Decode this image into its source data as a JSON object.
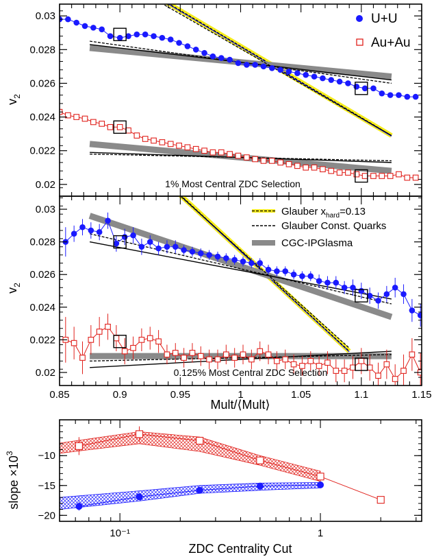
{
  "colors": {
    "uu": "#1a1aff",
    "auau": "#e0201b",
    "glauber_band": "#f5ec1e",
    "cgc": "#8a8a8a",
    "axis": "#000000"
  },
  "chart_data": [
    {
      "type": "line",
      "panel": "top",
      "annotation": "1% Most Central ZDC Selection",
      "ylabel": "v",
      "ylabel_sub": "2",
      "xlim": [
        0.85,
        1.15
      ],
      "ylim": [
        0.0193,
        0.0307
      ],
      "yticks": [
        0.02,
        0.022,
        0.024,
        0.026,
        0.028,
        0.03
      ],
      "ytick_labels": [
        "0.02",
        "0.022",
        "0.024",
        "0.026",
        "0.028",
        "0.03"
      ],
      "legend": {
        "placement": "top-right",
        "entries": [
          {
            "name": "U+U",
            "marker": "circle"
          },
          {
            "name": "Au+Au",
            "marker": "open-square"
          }
        ]
      },
      "series": [
        {
          "name": "U+U",
          "marker": "circle",
          "x": [
            0.85,
            0.857,
            0.864,
            0.871,
            0.878,
            0.885,
            0.892,
            0.9,
            0.907,
            0.914,
            0.921,
            0.928,
            0.935,
            0.942,
            0.949,
            0.956,
            0.963,
            0.97,
            0.977,
            0.984,
            0.991,
            0.998,
            1.005,
            1.012,
            1.019,
            1.026,
            1.033,
            1.04,
            1.047,
            1.054,
            1.061,
            1.068,
            1.075,
            1.082,
            1.089,
            1.096,
            1.103,
            1.11,
            1.117,
            1.124,
            1.131,
            1.138,
            1.145
          ],
          "y": [
            0.0298,
            0.0298,
            0.0296,
            0.0294,
            0.0293,
            0.0292,
            0.0288,
            0.0287,
            0.0288,
            0.0289,
            0.0289,
            0.0288,
            0.0287,
            0.0286,
            0.0284,
            0.0282,
            0.028,
            0.0278,
            0.0276,
            0.0275,
            0.0274,
            0.0272,
            0.0271,
            0.0271,
            0.027,
            0.0269,
            0.0268,
            0.0267,
            0.0266,
            0.0265,
            0.0264,
            0.0263,
            0.0262,
            0.0261,
            0.026,
            0.0258,
            0.0257,
            0.0257,
            0.0254,
            0.0253,
            0.0253,
            0.0252,
            0.0252
          ]
        },
        {
          "name": "Au+Au",
          "marker": "open-square",
          "x": [
            0.85,
            0.857,
            0.864,
            0.871,
            0.878,
            0.885,
            0.892,
            0.9,
            0.907,
            0.914,
            0.921,
            0.928,
            0.935,
            0.942,
            0.949,
            0.956,
            0.963,
            0.97,
            0.977,
            0.984,
            0.991,
            0.998,
            1.005,
            1.012,
            1.019,
            1.026,
            1.033,
            1.04,
            1.047,
            1.054,
            1.061,
            1.068,
            1.075,
            1.082,
            1.089,
            1.096,
            1.103,
            1.11,
            1.117,
            1.124,
            1.131,
            1.138,
            1.145
          ],
          "y": [
            0.0243,
            0.0241,
            0.024,
            0.0239,
            0.0237,
            0.0236,
            0.0234,
            0.0234,
            0.0232,
            0.0229,
            0.0227,
            0.0226,
            0.0225,
            0.0224,
            0.0223,
            0.0222,
            0.0221,
            0.022,
            0.0219,
            0.0219,
            0.0218,
            0.0217,
            0.0216,
            0.0215,
            0.0214,
            0.0214,
            0.0213,
            0.0212,
            0.0211,
            0.021,
            0.021,
            0.0209,
            0.0208,
            0.0207,
            0.0207,
            0.0206,
            0.0205,
            0.0205,
            0.0205,
            0.0205,
            0.0206,
            0.0204,
            0.0204
          ]
        }
      ],
      "syst_boxes": [
        {
          "series": "U+U",
          "x": 0.9,
          "y": 0.0289
        },
        {
          "series": "U+U",
          "x": 1.1,
          "y": 0.0257
        },
        {
          "series": "Au+Au",
          "x": 0.9,
          "y": 0.0234
        },
        {
          "series": "Au+Au",
          "x": 1.1,
          "y": 0.0205
        }
      ],
      "model_lines": [
        {
          "model": "Glauber x_hard=0.13",
          "style": "yellow-band",
          "x": [
            0.875,
            1.125
          ],
          "y": [
            0.0335,
            0.0229
          ]
        },
        {
          "model": "Glauber Const. Quarks",
          "style": "dashed",
          "x": [
            0.875,
            1.125
          ],
          "y": [
            0.0332,
            0.0229
          ]
        },
        {
          "model": "CGC-IPGlasma",
          "style": "gray-band",
          "x": [
            0.875,
            1.125
          ],
          "y": [
            0.0281,
            0.0264
          ]
        },
        {
          "model": "Glauber x_hard=0.13",
          "style": "solid",
          "x": [
            0.875,
            1.125
          ],
          "y": [
            0.0283,
            0.0262
          ]
        },
        {
          "model": "Glauber Const. Quarks",
          "style": "dashed",
          "x": [
            0.875,
            1.125
          ],
          "y": [
            0.0285,
            0.026
          ]
        },
        {
          "model": "CGC-IPGlasma",
          "style": "gray-band",
          "x": [
            0.875,
            1.125
          ],
          "y": [
            0.0224,
            0.0208
          ]
        },
        {
          "model": "Glauber x_hard=0.13",
          "style": "solid",
          "x": [
            0.875,
            1.125
          ],
          "y": [
            0.0219,
            0.0213
          ]
        },
        {
          "model": "Glauber Const. Quarks",
          "style": "dashed",
          "x": [
            0.875,
            1.125
          ],
          "y": [
            0.0218,
            0.0214
          ]
        }
      ]
    },
    {
      "type": "line",
      "panel": "middle",
      "annotation": "0.125% Most Central ZDC Selection",
      "ylabel": "v",
      "ylabel_sub": "2",
      "xlabel": "Mult/⟨Mult⟩",
      "xlim": [
        0.85,
        1.15
      ],
      "ylim": [
        0.0192,
        0.0308
      ],
      "xticks": [
        0.85,
        0.9,
        0.95,
        1,
        1.05,
        1.1,
        1.15
      ],
      "xtick_labels": [
        "0.85",
        "0.9",
        "0.95",
        "1",
        "1.05",
        "1.1",
        "1.15"
      ],
      "yticks": [
        0.02,
        0.022,
        0.024,
        0.026,
        0.028,
        0.03
      ],
      "ytick_labels": [
        "0.02",
        "0.022",
        "0.024",
        "0.026",
        "0.028",
        "0.03"
      ],
      "legend": {
        "placement": "top-right",
        "entries": [
          {
            "name": "Glauber x",
            "sub": "hard",
            "suffix": "=0.13",
            "style": "yellow-band"
          },
          {
            "name": "Glauber Const. Quarks",
            "style": "dashed"
          },
          {
            "name": "CGC-IPGlasma",
            "style": "gray-band"
          }
        ]
      },
      "series": [
        {
          "name": "U+U",
          "marker": "circle",
          "x": [
            0.855,
            0.862,
            0.869,
            0.876,
            0.883,
            0.89,
            0.897,
            0.904,
            0.911,
            0.918,
            0.925,
            0.932,
            0.939,
            0.946,
            0.953,
            0.96,
            0.967,
            0.974,
            0.981,
            0.988,
            0.995,
            1.002,
            1.009,
            1.016,
            1.023,
            1.03,
            1.037,
            1.044,
            1.051,
            1.058,
            1.065,
            1.072,
            1.079,
            1.086,
            1.093,
            1.1,
            1.107,
            1.114,
            1.121,
            1.128,
            1.135,
            1.142,
            1.149
          ],
          "y": [
            0.028,
            0.0285,
            0.0289,
            0.0287,
            0.0286,
            0.0293,
            0.0279,
            0.0283,
            0.0284,
            0.0277,
            0.028,
            0.0276,
            0.0277,
            0.0277,
            0.0275,
            0.0274,
            0.0273,
            0.0272,
            0.0271,
            0.027,
            0.0269,
            0.0268,
            0.0267,
            0.0267,
            0.0263,
            0.0262,
            0.0262,
            0.026,
            0.0259,
            0.0259,
            0.0256,
            0.0255,
            0.0255,
            0.0252,
            0.0252,
            0.025,
            0.0247,
            0.0244,
            0.0248,
            0.0252,
            0.0248,
            0.0238,
            0.0235
          ],
          "err": [
            0.0009,
            0.0005,
            0.0005,
            0.0005,
            0.0005,
            0.0005,
            0.0005,
            0.0005,
            0.0005,
            0.0005,
            0.0004,
            0.0004,
            0.0004,
            0.0004,
            0.0003,
            0.0003,
            0.0003,
            0.0003,
            0.0003,
            0.0003,
            0.0003,
            0.0003,
            0.0003,
            0.0003,
            0.0003,
            0.0003,
            0.0003,
            0.0003,
            0.0003,
            0.0003,
            0.0004,
            0.0004,
            0.0004,
            0.0004,
            0.0005,
            0.0005,
            0.0005,
            0.0005,
            0.0005,
            0.0006,
            0.0006,
            0.0007,
            0.0007
          ]
        },
        {
          "name": "Au+Au",
          "marker": "open-square",
          "x": [
            0.855,
            0.862,
            0.869,
            0.876,
            0.883,
            0.89,
            0.897,
            0.904,
            0.911,
            0.918,
            0.925,
            0.932,
            0.939,
            0.946,
            0.953,
            0.96,
            0.967,
            0.974,
            0.981,
            0.988,
            0.995,
            1.002,
            1.009,
            1.016,
            1.023,
            1.03,
            1.037,
            1.044,
            1.051,
            1.058,
            1.065,
            1.072,
            1.079,
            1.086,
            1.093,
            1.1,
            1.107,
            1.114,
            1.121,
            1.128,
            1.135,
            1.142,
            1.149
          ],
          "y": [
            0.022,
            0.0218,
            0.0209,
            0.022,
            0.0225,
            0.0228,
            0.0221,
            0.0213,
            0.0215,
            0.022,
            0.0221,
            0.0219,
            0.0211,
            0.0212,
            0.0209,
            0.0212,
            0.021,
            0.0208,
            0.0208,
            0.0211,
            0.0209,
            0.0211,
            0.0208,
            0.0213,
            0.0211,
            0.0207,
            0.0208,
            0.0205,
            0.0204,
            0.0207,
            0.0204,
            0.0206,
            0.0201,
            0.0201,
            0.0203,
            0.0207,
            0.0203,
            0.0198,
            0.0205,
            0.0196,
            0.0201,
            0.0211,
            0.02
          ],
          "err": [
            0.0014,
            0.001,
            0.001,
            0.0009,
            0.0009,
            0.0008,
            0.0008,
            0.0008,
            0.0007,
            0.0007,
            0.0007,
            0.0007,
            0.0006,
            0.0006,
            0.0006,
            0.0006,
            0.0006,
            0.0006,
            0.0006,
            0.0006,
            0.0006,
            0.0006,
            0.0006,
            0.0006,
            0.0006,
            0.0006,
            0.0006,
            0.0006,
            0.0006,
            0.0006,
            0.0006,
            0.0007,
            0.0007,
            0.0007,
            0.0007,
            0.0008,
            0.0008,
            0.0008,
            0.0009,
            0.0009,
            0.001,
            0.001,
            0.0012
          ]
        }
      ],
      "syst_boxes": [
        {
          "series": "U+U",
          "x": 0.9,
          "y": 0.028
        },
        {
          "series": "U+U",
          "x": 1.1,
          "y": 0.0247
        },
        {
          "series": "Au+Au",
          "x": 0.9,
          "y": 0.0219
        },
        {
          "series": "Au+Au",
          "x": 1.1,
          "y": 0.0205
        }
      ],
      "model_lines": [
        {
          "model": "Glauber x_hard=0.13",
          "style": "yellow-band",
          "x": [
            0.875,
            1.09
          ],
          "y": [
            0.036,
            0.0213
          ]
        },
        {
          "model": "Glauber Const. Quarks",
          "style": "dashed",
          "x": [
            0.875,
            1.09
          ],
          "y": [
            0.0358,
            0.0215
          ]
        },
        {
          "model": "CGC-IPGlasma",
          "style": "gray-band",
          "x": [
            0.875,
            1.125
          ],
          "y": [
            0.0296,
            0.0234
          ]
        },
        {
          "model": "Glauber x_hard=0.13",
          "style": "solid",
          "x": [
            0.875,
            1.125
          ],
          "y": [
            0.028,
            0.0245
          ]
        },
        {
          "model": "Glauber Const. Quarks",
          "style": "dashed",
          "x": [
            0.875,
            1.125
          ],
          "y": [
            0.0285,
            0.0242
          ]
        },
        {
          "model": "CGC-IPGlasma",
          "style": "gray-band",
          "x": [
            0.875,
            1.125
          ],
          "y": [
            0.021,
            0.021
          ]
        },
        {
          "model": "Glauber x_hard=0.13",
          "style": "solid",
          "x": [
            0.875,
            1.125
          ],
          "y": [
            0.0203,
            0.0213
          ]
        },
        {
          "model": "Glauber Const. Quarks",
          "style": "dashed",
          "x": [
            0.875,
            1.125
          ],
          "y": [
            0.0207,
            0.0211
          ]
        }
      ]
    },
    {
      "type": "line",
      "panel": "bottom",
      "xscale": "log",
      "xlabel": "ZDC Centrality Cut",
      "ylabel": "slope ×10",
      "ylabel_sup": "3",
      "xlim": [
        0.05,
        3.2
      ],
      "ylim": [
        -21,
        -4
      ],
      "xticks": [
        0.1,
        1
      ],
      "xtick_labels": [
        "10⁻¹",
        "1"
      ],
      "yticks": [
        -20,
        -15,
        -10
      ],
      "ytick_labels": [
        "−20",
        "−15",
        "−10"
      ],
      "series": [
        {
          "name": "Au+Au",
          "marker": "open-square",
          "x": [
            0.0625,
            0.125,
            0.25,
            0.5,
            1,
            2
          ],
          "y": [
            -8.4,
            -6.4,
            -7.5,
            -10.8,
            -13.5,
            -17.4
          ],
          "err": [
            1.5,
            1.3,
            0.6,
            0.3,
            0.3,
            0.2
          ]
        },
        {
          "name": "U+U",
          "marker": "circle",
          "x": [
            0.0625,
            0.125,
            0.25,
            0.5,
            1
          ],
          "y": [
            -18.5,
            -16.9,
            -15.8,
            -15.1,
            -14.9
          ],
          "err": [
            0.7,
            0.4,
            0.3,
            0.2,
            0.2
          ]
        }
      ],
      "bands": [
        {
          "series": "Au+Au",
          "x": [
            0.05,
            0.125,
            0.25,
            0.5,
            1
          ],
          "lower": [
            -9.6,
            -8.0,
            -9.3,
            -11.6,
            -14.3
          ],
          "upper": [
            -7.9,
            -6.0,
            -6.9,
            -10.0,
            -12.6
          ]
        },
        {
          "series": "U+U",
          "x": [
            0.05,
            0.125,
            0.25,
            0.5,
            1
          ],
          "lower": [
            -19.0,
            -17.6,
            -16.3,
            -15.8,
            -15.4
          ],
          "upper": [
            -17.0,
            -15.9,
            -15.0,
            -14.6,
            -14.5
          ]
        }
      ]
    }
  ]
}
